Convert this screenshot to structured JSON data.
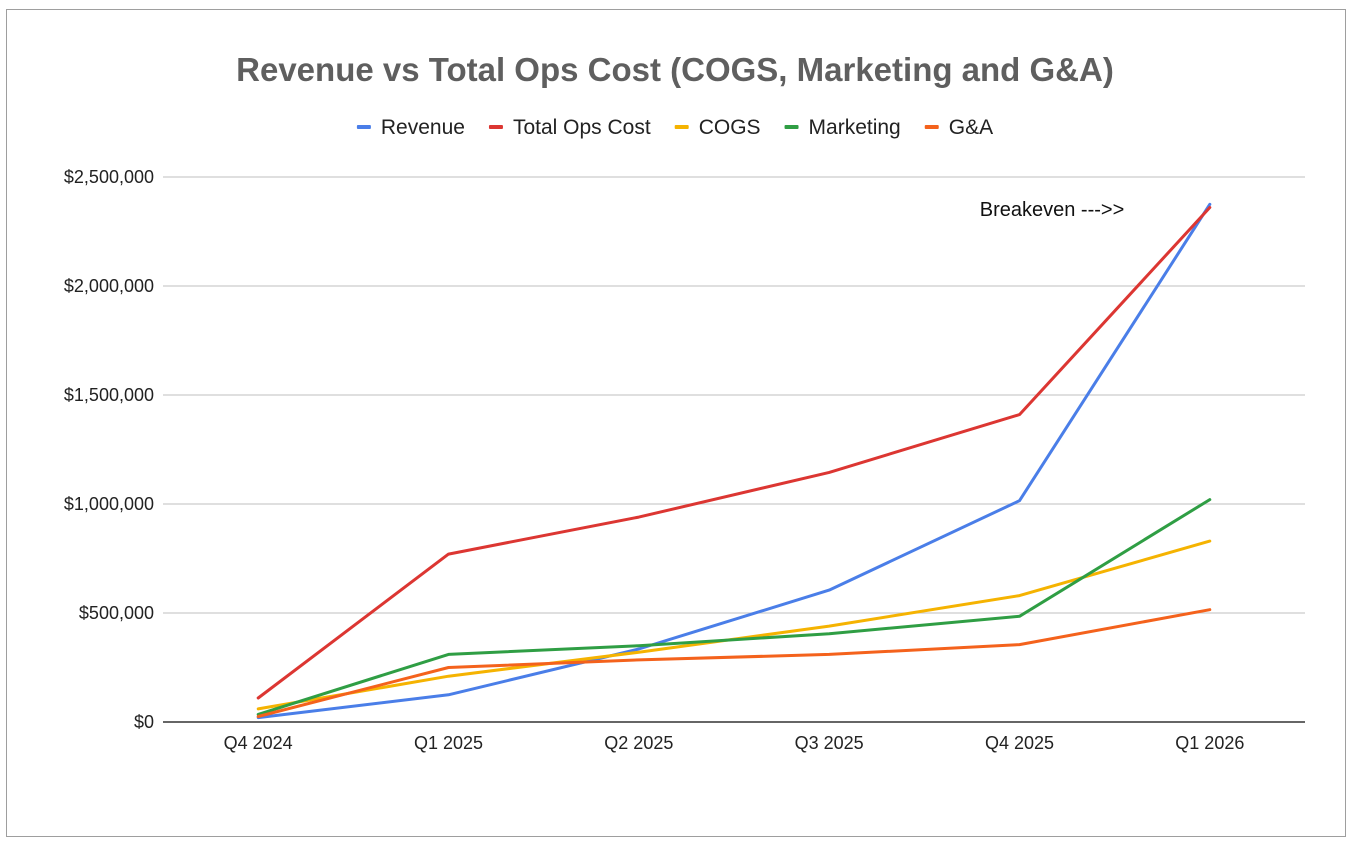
{
  "chart_data": {
    "type": "line",
    "title": "Revenue vs Total Ops Cost (COGS, Marketing and G&A)",
    "xlabel": "",
    "ylabel": "",
    "categories": [
      "Q4 2024",
      "Q1 2025",
      "Q2 2025",
      "Q3 2025",
      "Q4 2025",
      "Q1 2026"
    ],
    "y_ticks": [
      "$0",
      "$500,000",
      "$1,000,000",
      "$1,500,000",
      "$2,000,000",
      "$2,500,000"
    ],
    "ylim": [
      0,
      2500000
    ],
    "grid": true,
    "legend_position": "top",
    "series": [
      {
        "name": "Revenue",
        "color": "#4a7ee8",
        "values": [
          20000,
          125000,
          335000,
          605000,
          1015000,
          2375000
        ]
      },
      {
        "name": "Total Ops Cost",
        "color": "#dc3632",
        "values": [
          110000,
          770000,
          940000,
          1145000,
          1410000,
          2360000
        ]
      },
      {
        "name": "COGS",
        "color": "#f5b301",
        "values": [
          60000,
          210000,
          320000,
          440000,
          580000,
          830000
        ]
      },
      {
        "name": "Marketing",
        "color": "#2f9e44",
        "values": [
          35000,
          310000,
          350000,
          405000,
          485000,
          1020000
        ]
      },
      {
        "name": "G&A",
        "color": "#f4621c",
        "values": [
          25000,
          250000,
          285000,
          310000,
          355000,
          515000
        ]
      }
    ],
    "annotations": [
      {
        "text": "Breakeven --->>",
        "near_category": "Q4 2025"
      }
    ]
  }
}
